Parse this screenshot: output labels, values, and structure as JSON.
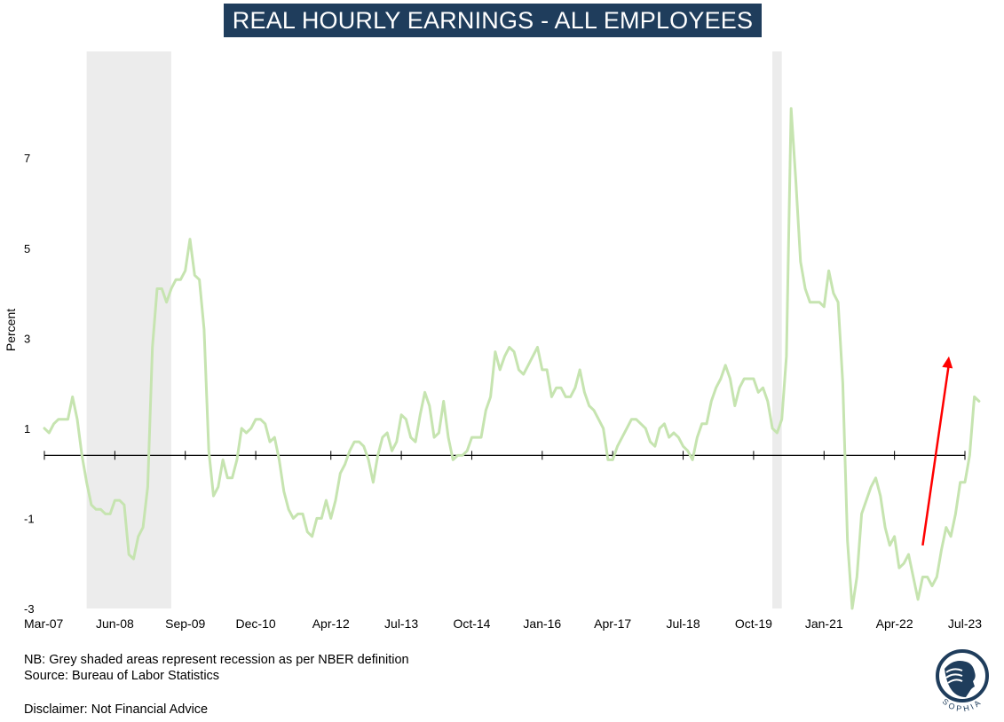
{
  "chart_data": {
    "type": "line",
    "title": "REAL HOURLY EARNINGS - ALL EMPLOYEES",
    "ylabel": "Percent",
    "xlabel": "",
    "x_tick_labels": [
      "Mar-07",
      "Jun-08",
      "Sep-09",
      "Dec-10",
      "Apr-12",
      "Jul-13",
      "Oct-14",
      "Jan-16",
      "Apr-17",
      "Jul-18",
      "Oct-19",
      "Jan-21",
      "Apr-22",
      "Jul-23"
    ],
    "y_tick_labels": [
      "-3",
      "-1",
      "1",
      "3",
      "5",
      "7"
    ],
    "ylim": [
      -3,
      8.6
    ],
    "zero_line": 0.4,
    "series_color": "#c6e4b0",
    "recession_bands": [
      {
        "start": "Dec-07",
        "end": "Jun-09"
      },
      {
        "start": "Feb-20",
        "end": "Apr-20"
      }
    ],
    "annotation_arrow": {
      "color": "#ff0000",
      "from": [
        "Oct-22",
        -1.6
      ],
      "to": [
        "Jul-23",
        2.6
      ]
    },
    "series": [
      {
        "values": [
          [
            0,
            1.0
          ],
          [
            1,
            0.9
          ],
          [
            2,
            1.1
          ],
          [
            3,
            1.2
          ],
          [
            4,
            1.2
          ],
          [
            5,
            1.2
          ],
          [
            6,
            1.7
          ],
          [
            7,
            1.2
          ],
          [
            8,
            0.4
          ],
          [
            9,
            -0.2
          ],
          [
            10,
            -0.7
          ],
          [
            11,
            -0.8
          ],
          [
            12,
            -0.8
          ],
          [
            13,
            -0.9
          ],
          [
            14,
            -0.9
          ],
          [
            15,
            -0.6
          ],
          [
            16,
            -0.6
          ],
          [
            17,
            -0.7
          ],
          [
            18,
            -1.8
          ],
          [
            19,
            -1.9
          ],
          [
            20,
            -1.4
          ],
          [
            21,
            -1.2
          ],
          [
            22,
            -0.3
          ],
          [
            23,
            2.8
          ],
          [
            24,
            4.1
          ],
          [
            25,
            4.1
          ],
          [
            26,
            3.8
          ],
          [
            27,
            4.1
          ],
          [
            28,
            4.3
          ],
          [
            29,
            4.3
          ],
          [
            30,
            4.5
          ],
          [
            31,
            5.2
          ],
          [
            32,
            4.4
          ],
          [
            33,
            4.3
          ],
          [
            34,
            3.2
          ],
          [
            35,
            0.5
          ],
          [
            36,
            -0.5
          ],
          [
            37,
            -0.3
          ],
          [
            38,
            0.3
          ],
          [
            39,
            -0.1
          ],
          [
            40,
            -0.1
          ],
          [
            41,
            0.3
          ],
          [
            42,
            1.0
          ],
          [
            43,
            0.9
          ],
          [
            44,
            1.0
          ],
          [
            45,
            1.2
          ],
          [
            46,
            1.2
          ],
          [
            47,
            1.1
          ],
          [
            48,
            0.7
          ],
          [
            49,
            0.8
          ],
          [
            50,
            0.3
          ],
          [
            51,
            -0.4
          ],
          [
            52,
            -0.8
          ],
          [
            53,
            -1.0
          ],
          [
            54,
            -0.9
          ],
          [
            55,
            -0.9
          ],
          [
            56,
            -1.3
          ],
          [
            57,
            -1.4
          ],
          [
            58,
            -1.0
          ],
          [
            59,
            -1.0
          ],
          [
            60,
            -0.6
          ],
          [
            61,
            -1.0
          ],
          [
            62,
            -0.6
          ],
          [
            63,
            0.0
          ],
          [
            64,
            0.2
          ],
          [
            65,
            0.5
          ],
          [
            66,
            0.7
          ],
          [
            67,
            0.7
          ],
          [
            68,
            0.6
          ],
          [
            69,
            0.3
          ],
          [
            70,
            -0.2
          ],
          [
            71,
            0.4
          ],
          [
            72,
            0.8
          ],
          [
            73,
            0.9
          ],
          [
            74,
            0.5
          ],
          [
            75,
            0.7
          ],
          [
            76,
            1.3
          ],
          [
            77,
            1.2
          ],
          [
            78,
            0.8
          ],
          [
            79,
            0.7
          ],
          [
            80,
            1.3
          ],
          [
            81,
            1.8
          ],
          [
            82,
            1.5
          ],
          [
            83,
            0.8
          ],
          [
            84,
            0.9
          ],
          [
            85,
            1.6
          ],
          [
            86,
            0.8
          ],
          [
            87,
            0.3
          ],
          [
            88,
            0.4
          ],
          [
            89,
            0.4
          ],
          [
            90,
            0.5
          ],
          [
            91,
            0.8
          ],
          [
            92,
            0.8
          ],
          [
            93,
            0.8
          ],
          [
            94,
            1.4
          ],
          [
            95,
            1.7
          ],
          [
            96,
            2.7
          ],
          [
            97,
            2.3
          ],
          [
            98,
            2.6
          ],
          [
            99,
            2.8
          ],
          [
            100,
            2.7
          ],
          [
            101,
            2.3
          ],
          [
            102,
            2.2
          ],
          [
            103,
            2.4
          ],
          [
            104,
            2.6
          ],
          [
            105,
            2.8
          ],
          [
            106,
            2.3
          ],
          [
            107,
            2.3
          ],
          [
            108,
            1.7
          ],
          [
            109,
            1.9
          ],
          [
            110,
            1.9
          ],
          [
            111,
            1.7
          ],
          [
            112,
            1.7
          ],
          [
            113,
            1.9
          ],
          [
            114,
            2.3
          ],
          [
            115,
            1.8
          ],
          [
            116,
            1.5
          ],
          [
            117,
            1.4
          ],
          [
            118,
            1.2
          ],
          [
            119,
            1.0
          ],
          [
            120,
            0.3
          ],
          [
            121,
            0.3
          ],
          [
            122,
            0.6
          ],
          [
            123,
            0.8
          ],
          [
            124,
            1.0
          ],
          [
            125,
            1.2
          ],
          [
            126,
            1.2
          ],
          [
            127,
            1.1
          ],
          [
            128,
            1.0
          ],
          [
            129,
            0.7
          ],
          [
            130,
            0.6
          ],
          [
            131,
            1.0
          ],
          [
            132,
            1.1
          ],
          [
            133,
            0.8
          ],
          [
            134,
            0.9
          ],
          [
            135,
            0.8
          ],
          [
            136,
            0.6
          ],
          [
            137,
            0.5
          ],
          [
            138,
            0.3
          ],
          [
            139,
            0.8
          ],
          [
            140,
            1.1
          ],
          [
            141,
            1.1
          ],
          [
            142,
            1.6
          ],
          [
            143,
            1.9
          ],
          [
            144,
            2.1
          ],
          [
            145,
            2.4
          ],
          [
            146,
            2.1
          ],
          [
            147,
            1.5
          ],
          [
            148,
            1.9
          ],
          [
            149,
            2.1
          ],
          [
            150,
            2.1
          ],
          [
            151,
            2.1
          ],
          [
            152,
            1.8
          ],
          [
            153,
            1.9
          ],
          [
            154,
            1.6
          ],
          [
            155,
            1.0
          ],
          [
            156,
            0.9
          ],
          [
            157,
            1.2
          ],
          [
            158,
            2.6
          ],
          [
            159,
            8.1
          ],
          [
            160,
            6.5
          ],
          [
            161,
            4.7
          ],
          [
            162,
            4.1
          ],
          [
            163,
            3.8
          ],
          [
            164,
            3.8
          ],
          [
            165,
            3.8
          ],
          [
            166,
            3.7
          ],
          [
            167,
            4.5
          ],
          [
            168,
            4.0
          ],
          [
            169,
            3.8
          ],
          [
            170,
            2.0
          ],
          [
            171,
            -1.5
          ],
          [
            172,
            -3.0
          ],
          [
            173,
            -2.3
          ],
          [
            174,
            -0.9
          ],
          [
            175,
            -0.6
          ],
          [
            176,
            -0.3
          ],
          [
            177,
            -0.1
          ],
          [
            178,
            -0.5
          ],
          [
            179,
            -1.2
          ],
          [
            180,
            -1.6
          ],
          [
            181,
            -1.4
          ],
          [
            182,
            -2.1
          ],
          [
            183,
            -2.0
          ],
          [
            184,
            -1.8
          ],
          [
            185,
            -2.3
          ],
          [
            186,
            -2.8
          ],
          [
            187,
            -2.3
          ],
          [
            188,
            -2.3
          ],
          [
            189,
            -2.5
          ],
          [
            190,
            -2.3
          ],
          [
            191,
            -1.7
          ],
          [
            192,
            -1.2
          ],
          [
            193,
            -1.4
          ],
          [
            194,
            -0.9
          ],
          [
            195,
            -0.2
          ],
          [
            196,
            -0.2
          ],
          [
            197,
            0.4
          ],
          [
            198,
            1.7
          ],
          [
            199,
            1.6
          ]
        ]
      }
    ]
  },
  "footnotes": {
    "nb": "NB: Grey shaded areas represent recession as per NBER definition",
    "source": "Source: Bureau of Labor Statistics",
    "disclaimer": "Disclaimer: Not Financial Advice"
  },
  "logo": {
    "text": "SOPHIA",
    "icon": "sophia-logo-icon"
  }
}
